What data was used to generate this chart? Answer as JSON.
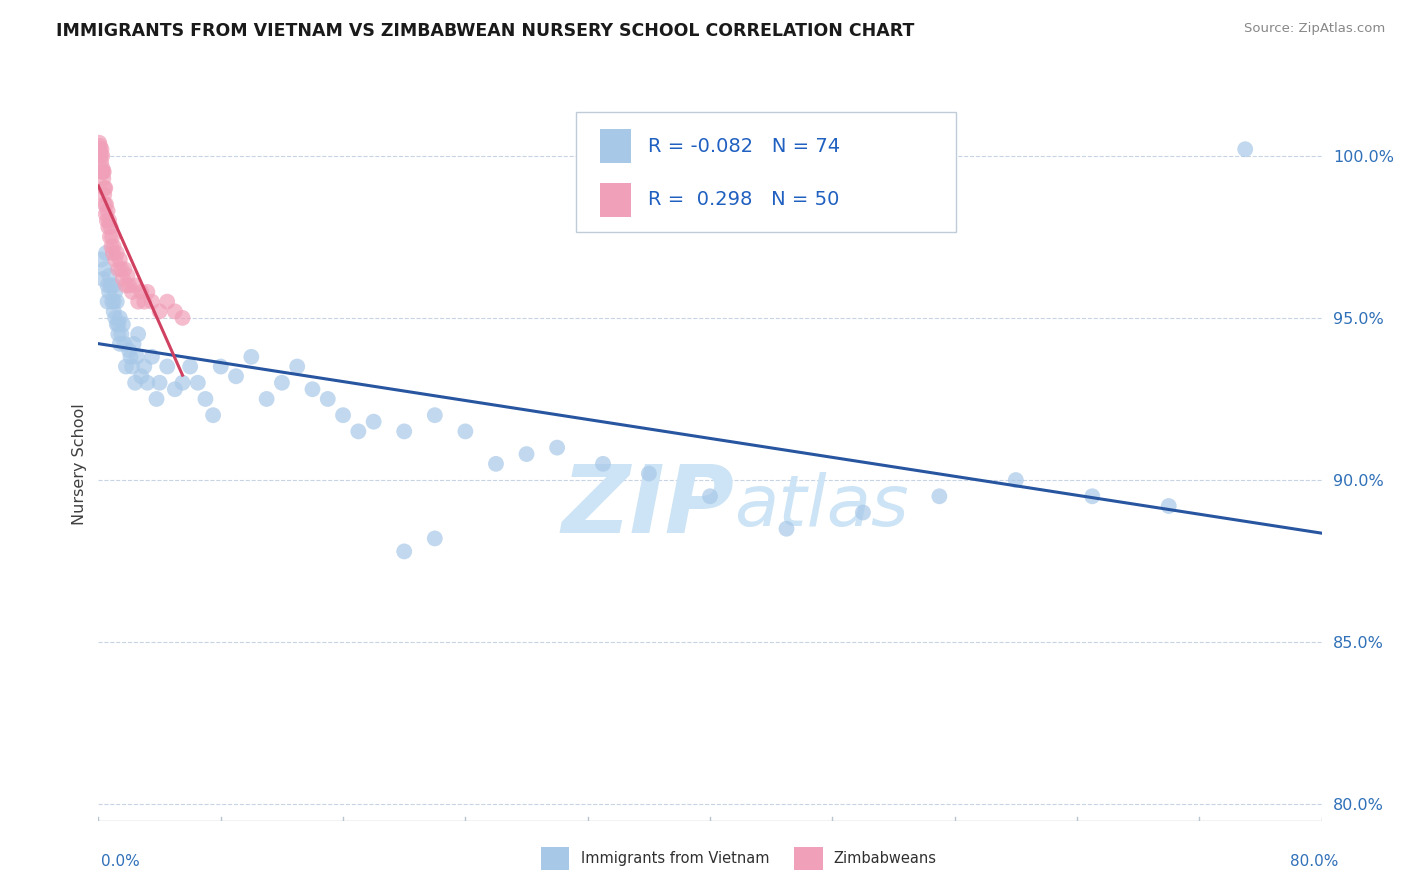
{
  "title": "IMMIGRANTS FROM VIETNAM VS ZIMBABWEAN NURSERY SCHOOL CORRELATION CHART",
  "source": "Source: ZipAtlas.com",
  "ylabel": "Nursery School",
  "xlim": [
    0.0,
    80.0
  ],
  "ylim": [
    79.5,
    101.5
  ],
  "yticks": [
    80.0,
    85.0,
    90.0,
    95.0,
    100.0
  ],
  "ytick_labels": [
    "80.0%",
    "85.0%",
    "90.0%",
    "95.0%",
    "100.0%"
  ],
  "blue_R": -0.082,
  "blue_N": 74,
  "pink_R": 0.298,
  "pink_N": 50,
  "blue_color": "#a8c8e8",
  "pink_color": "#f0a0b8",
  "blue_line_color": "#2855a0",
  "pink_line_color": "#d04060",
  "watermark": "ZIPatlas",
  "watermark_color": "#cce4f5",
  "background_color": "#ffffff",
  "grid_color": "#c8d4e4",
  "title_color": "#1a1a1a",
  "source_color": "#888888",
  "legend_color": "#2060c0",
  "blue_x": [
    0.2,
    0.3,
    0.4,
    0.5,
    0.6,
    0.6,
    0.7,
    0.7,
    0.8,
    0.9,
    1.0,
    1.0,
    1.0,
    1.1,
    1.1,
    1.2,
    1.2,
    1.3,
    1.3,
    1.4,
    1.4,
    1.5,
    1.6,
    1.7,
    1.8,
    2.0,
    2.1,
    2.2,
    2.3,
    2.4,
    2.5,
    2.6,
    2.8,
    3.0,
    3.2,
    3.5,
    3.8,
    4.0,
    4.5,
    5.0,
    5.5,
    6.0,
    6.5,
    7.0,
    7.5,
    8.0,
    9.0,
    10.0,
    11.0,
    12.0,
    13.0,
    14.0,
    15.0,
    16.0,
    17.0,
    18.0,
    20.0,
    22.0,
    24.0,
    26.0,
    28.0,
    30.0,
    33.0,
    36.0,
    40.0,
    45.0,
    50.0,
    55.0,
    60.0,
    65.0,
    70.0,
    75.0,
    20.0,
    22.0
  ],
  "blue_y": [
    96.8,
    96.2,
    96.5,
    97.0,
    96.0,
    95.5,
    96.3,
    95.8,
    96.0,
    95.5,
    95.5,
    96.0,
    95.2,
    95.8,
    95.0,
    95.5,
    94.8,
    94.8,
    94.5,
    95.0,
    94.2,
    94.5,
    94.8,
    94.2,
    93.5,
    94.0,
    93.8,
    93.5,
    94.2,
    93.0,
    93.8,
    94.5,
    93.2,
    93.5,
    93.0,
    93.8,
    92.5,
    93.0,
    93.5,
    92.8,
    93.0,
    93.5,
    93.0,
    92.5,
    92.0,
    93.5,
    93.2,
    93.8,
    92.5,
    93.0,
    93.5,
    92.8,
    92.5,
    92.0,
    91.5,
    91.8,
    91.5,
    92.0,
    91.5,
    90.5,
    90.8,
    91.0,
    90.5,
    90.2,
    89.5,
    88.5,
    89.0,
    89.5,
    90.0,
    89.5,
    89.2,
    100.2,
    87.8,
    88.2
  ],
  "pink_x": [
    0.05,
    0.08,
    0.1,
    0.12,
    0.15,
    0.18,
    0.2,
    0.22,
    0.25,
    0.28,
    0.3,
    0.32,
    0.35,
    0.38,
    0.4,
    0.42,
    0.45,
    0.48,
    0.5,
    0.55,
    0.6,
    0.65,
    0.7,
    0.75,
    0.8,
    0.85,
    0.9,
    0.95,
    1.0,
    1.1,
    1.2,
    1.3,
    1.4,
    1.5,
    1.6,
    1.7,
    1.8,
    1.9,
    2.0,
    2.2,
    2.4,
    2.6,
    2.8,
    3.0,
    3.2,
    3.5,
    4.0,
    4.5,
    5.0,
    5.5
  ],
  "pink_y": [
    100.4,
    100.2,
    100.3,
    100.1,
    100.0,
    99.8,
    100.2,
    99.5,
    100.0,
    99.6,
    99.5,
    99.3,
    99.5,
    98.8,
    99.0,
    98.5,
    99.0,
    98.2,
    98.5,
    98.0,
    98.3,
    97.8,
    98.0,
    97.5,
    97.8,
    97.2,
    97.5,
    97.0,
    97.2,
    96.8,
    97.0,
    96.5,
    96.8,
    96.5,
    96.2,
    96.5,
    96.0,
    96.3,
    96.0,
    95.8,
    96.0,
    95.5,
    95.8,
    95.5,
    95.8,
    95.5,
    95.2,
    95.5,
    95.2,
    95.0
  ]
}
